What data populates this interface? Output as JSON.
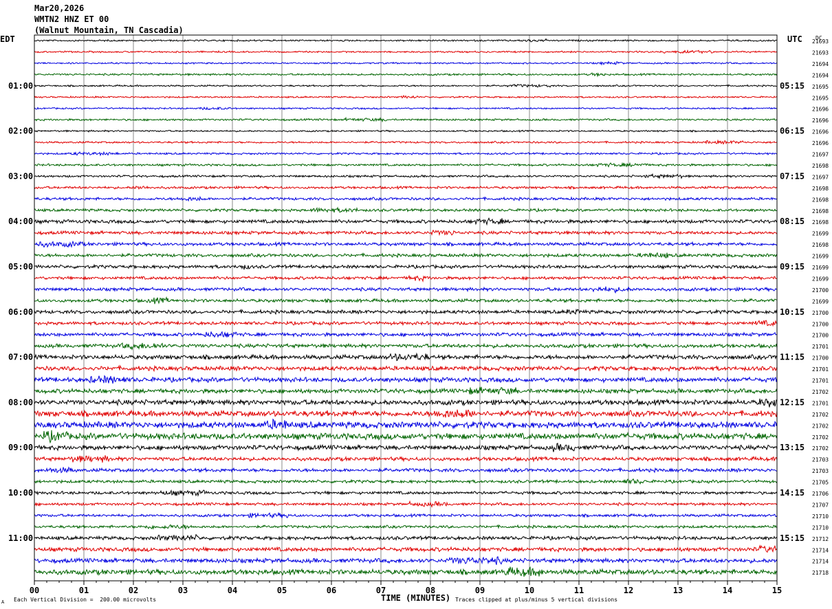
{
  "header": {
    "date": "Mar20,2026",
    "station": "WMTN2 HNZ ET 00",
    "location": "(Walnut Mountain, TN Cascadia)"
  },
  "axis_labels": {
    "left_timezone": "EDT",
    "right_timezone": "UTC",
    "right_dc": "DC",
    "x_title": "TIME (MINUTES)"
  },
  "footer": {
    "scale_note": "Each Vertical Division =  200.00 microvolts",
    "clip_note": "Traces clipped at plus/minus 5 vertical divisions",
    "corner_mark": "A"
  },
  "colors": {
    "trace_cycle": [
      "#000000",
      "#e00000",
      "#0000e0",
      "#006400"
    ],
    "grid": "#888888"
  },
  "chart_data": {
    "type": "line",
    "title": "Mar20,2026 WMTN2 HNZ ET 00 (Walnut Mountain, TN Cascadia)",
    "xlabel": "TIME (MINUTES)",
    "xlim": [
      0,
      15
    ],
    "x_ticks": [
      "00",
      "01",
      "02",
      "03",
      "04",
      "05",
      "06",
      "07",
      "08",
      "09",
      "10",
      "11",
      "12",
      "13",
      "14",
      "15"
    ],
    "trace_count": 48,
    "left_hour_labels": [
      {
        "trace": 4,
        "label": "01:00"
      },
      {
        "trace": 8,
        "label": "02:00"
      },
      {
        "trace": 12,
        "label": "03:00"
      },
      {
        "trace": 16,
        "label": "04:00"
      },
      {
        "trace": 20,
        "label": "05:00"
      },
      {
        "trace": 24,
        "label": "06:00"
      },
      {
        "trace": 28,
        "label": "07:00"
      },
      {
        "trace": 32,
        "label": "08:00"
      },
      {
        "trace": 36,
        "label": "09:00"
      },
      {
        "trace": 40,
        "label": "10:00"
      },
      {
        "trace": 44,
        "label": "11:00"
      }
    ],
    "right_hour_labels": [
      {
        "trace": 4,
        "label": "05:15"
      },
      {
        "trace": 8,
        "label": "06:15"
      },
      {
        "trace": 12,
        "label": "07:15"
      },
      {
        "trace": 16,
        "label": "08:15"
      },
      {
        "trace": 20,
        "label": "09:15"
      },
      {
        "trace": 24,
        "label": "10:15"
      },
      {
        "trace": 28,
        "label": "11:15"
      },
      {
        "trace": 32,
        "label": "12:15"
      },
      {
        "trace": 36,
        "label": "13:15"
      },
      {
        "trace": 40,
        "label": "14:15"
      },
      {
        "trace": 44,
        "label": "15:15"
      }
    ],
    "dc_offsets": [
      21693,
      21693,
      21694,
      21694,
      21695,
      21695,
      21696,
      21696,
      21696,
      21696,
      21697,
      21698,
      21697,
      21698,
      21698,
      21698,
      21698,
      21699,
      21698,
      21699,
      21699,
      21699,
      21700,
      21699,
      21700,
      21700,
      21700,
      21701,
      21700,
      21701,
      21701,
      21702,
      21701,
      21702,
      21702,
      21702,
      21702,
      21703,
      21703,
      21705,
      21706,
      21707,
      21710,
      21710,
      21712,
      21714,
      21714,
      21718
    ],
    "amplitude_levels": [
      0.6,
      0.6,
      0.6,
      0.7,
      0.6,
      0.6,
      0.6,
      0.7,
      0.6,
      0.7,
      0.7,
      0.8,
      0.8,
      0.9,
      1.0,
      1.0,
      1.3,
      1.2,
      1.2,
      1.2,
      1.2,
      1.1,
      1.2,
      1.2,
      1.3,
      1.2,
      1.3,
      1.4,
      1.6,
      1.6,
      1.7,
      1.6,
      1.9,
      2.1,
      2.3,
      2.3,
      1.7,
      1.4,
      1.3,
      1.1,
      1.1,
      1.0,
      1.0,
      1.0,
      1.3,
      1.5,
      1.6,
      1.9
    ]
  }
}
